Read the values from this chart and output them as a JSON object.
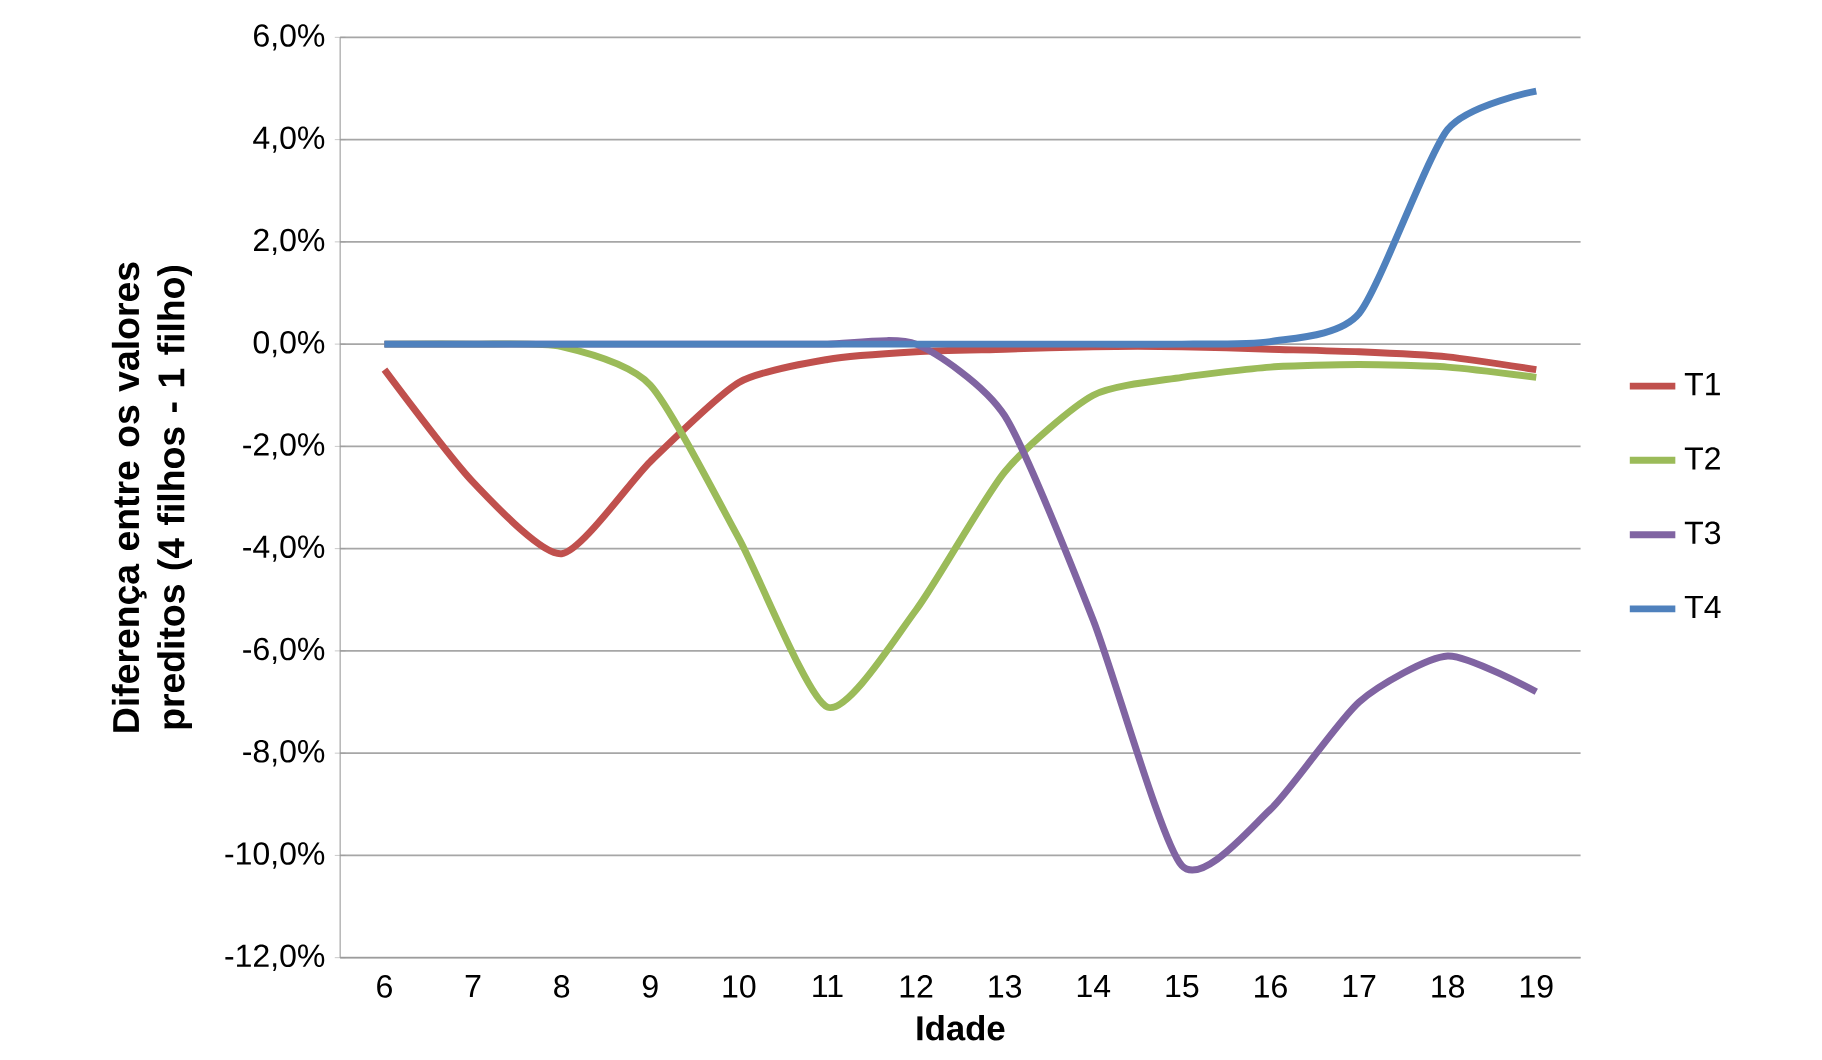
{
  "chart_data": {
    "type": "line",
    "xlabel": "Idade",
    "ylabel": "Diferença entre os valores preditos (4 filhos - 1 filho)",
    "categories": [
      "6",
      "7",
      "8",
      "9",
      "10",
      "11",
      "12",
      "13",
      "14",
      "15",
      "16",
      "17",
      "18",
      "19"
    ],
    "series": [
      {
        "name": "T1",
        "color": "#c0504d",
        "values": [
          -0.5,
          -2.7,
          -4.1,
          -2.3,
          -0.75,
          -0.3,
          -0.15,
          -0.1,
          -0.05,
          -0.05,
          -0.1,
          -0.15,
          -0.25,
          -0.5
        ]
      },
      {
        "name": "T2",
        "color": "#9bbb59",
        "values": [
          0,
          0,
          -0.05,
          -0.8,
          -3.8,
          -7.1,
          -5.2,
          -2.5,
          -1.0,
          -0.65,
          -0.45,
          -0.4,
          -0.45,
          -0.65
        ]
      },
      {
        "name": "T3",
        "color": "#8064a2",
        "values": [
          0,
          0,
          0,
          0,
          0,
          0,
          0,
          -1.4,
          -5.4,
          -10.2,
          -9.1,
          -7.0,
          -6.1,
          -6.8
        ]
      },
      {
        "name": "T4",
        "color": "#4f81bd",
        "values": [
          0,
          0,
          0,
          0,
          0,
          0,
          0,
          0,
          0,
          0,
          0.05,
          0.6,
          4.2,
          4.95
        ]
      }
    ],
    "ylim": [
      -12,
      6
    ],
    "yticks": [
      {
        "value": -12,
        "label": "-12,0%"
      },
      {
        "value": -10,
        "label": "-10,0%"
      },
      {
        "value": -8,
        "label": "-8,0%"
      },
      {
        "value": -6,
        "label": "-6,0%"
      },
      {
        "value": -4,
        "label": "-4,0%"
      },
      {
        "value": -2,
        "label": "-2,0%"
      },
      {
        "value": 0,
        "label": "0,0%"
      },
      {
        "value": 2,
        "label": "2,0%"
      },
      {
        "value": 4,
        "label": "4,0%"
      },
      {
        "value": 6,
        "label": "6,0%"
      }
    ],
    "grid": "y",
    "legend": "right",
    "marker": "none",
    "line_style": "solid"
  }
}
